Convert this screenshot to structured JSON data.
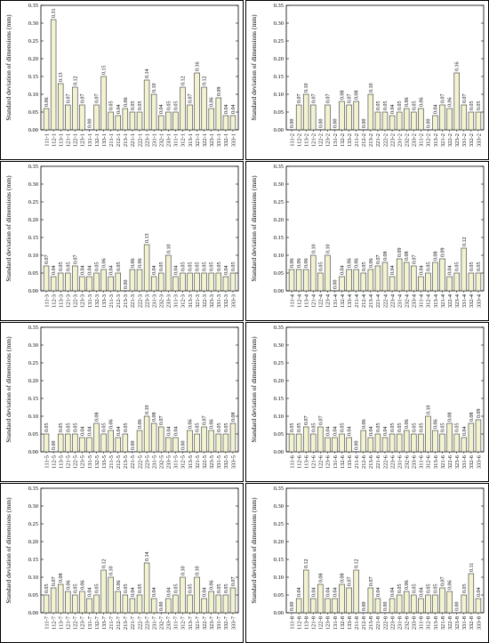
{
  "chart_data": [
    {
      "type": "bar",
      "panel": "a",
      "ylabel": "Standard deviation of dimensions (mm)",
      "ylim": [
        0,
        0.35
      ],
      "yticks": [
        "0.00",
        "0.05",
        "0.10",
        "0.15",
        "0.20",
        "0.25",
        "0.30",
        "0.35"
      ],
      "categories": [
        "111-1",
        "112-1",
        "113-1",
        "121-1",
        "122-1",
        "123-1",
        "131-1",
        "132-1",
        "133-1",
        "211-1",
        "212-1",
        "213-1",
        "221-1",
        "222-1",
        "223-1",
        "231-1",
        "232-1",
        "233-1",
        "311-1",
        "312-1",
        "313-1",
        "321-1",
        "322-1",
        "323-1",
        "331-1",
        "332-1",
        "333-1"
      ],
      "values": [
        0.06,
        0.31,
        0.13,
        0.07,
        0.12,
        0.07,
        0.0,
        0.07,
        0.15,
        0.05,
        0.04,
        0.06,
        0.05,
        0.05,
        0.14,
        0.1,
        0.04,
        0.05,
        0.05,
        0.12,
        0.07,
        0.16,
        0.12,
        0.06,
        0.09,
        0.04,
        0.04
      ],
      "labels": [
        "0.06",
        "0.31",
        "0.13",
        "0.07",
        "0.12",
        "0.07",
        "0.00",
        "0.07",
        "0.15",
        "0.05",
        "0.04",
        "0.06",
        "0.05",
        "0.05",
        "0.14",
        "0.10",
        "0.04",
        "0.05",
        "0.05",
        "0.12",
        "0.07",
        "0.16",
        "0.12",
        "0.06",
        "0.09",
        "0.04",
        "0.04"
      ]
    },
    {
      "type": "bar",
      "panel": "b",
      "ylabel": "Standard deviation of dimensions (mm)",
      "ylim": [
        0,
        0.35
      ],
      "yticks": [
        "0.00",
        "0.05",
        "0.10",
        "0.15",
        "0.20",
        "0.25",
        "0.30",
        "0.35"
      ],
      "categories": [
        "111-2",
        "112-2",
        "113-2",
        "121-2",
        "122-2",
        "123-2",
        "131-2",
        "132-2",
        "133-2",
        "211-2",
        "212-2",
        "213-2",
        "221-2",
        "222-2",
        "223-2",
        "231-2",
        "232-2",
        "233-2",
        "311-2",
        "312-2",
        "313-2",
        "321-2",
        "322-2",
        "323-2",
        "331-2",
        "332-2",
        "333-2"
      ],
      "values": [
        0.0,
        0.07,
        0.1,
        0.07,
        0.0,
        0.07,
        0.0,
        0.08,
        0.07,
        0.08,
        0.0,
        0.1,
        0.05,
        0.05,
        0.04,
        0.05,
        0.06,
        0.05,
        0.06,
        0.0,
        0.04,
        0.07,
        0.06,
        0.16,
        0.07,
        0.05,
        0.05
      ],
      "labels": [
        "0.00",
        "0.07",
        "0.10",
        "0.07",
        "0.00",
        "0.07",
        "0.00",
        "0.08",
        "0.07",
        "0.08",
        "0.00",
        "0.10",
        "0.05",
        "0.05",
        "0.04",
        "0.05",
        "0.06",
        "0.05",
        "0.06",
        "0.00",
        "0.04",
        "0.07",
        "0.06",
        "0.16",
        "0.07",
        "0.05",
        "0.05"
      ]
    },
    {
      "type": "bar",
      "panel": "c",
      "ylabel": "Standard deviation of dimensions (mm)",
      "ylim": [
        0,
        0.35
      ],
      "yticks": [
        "0.00",
        "0.05",
        "0.10",
        "0.15",
        "0.20",
        "0.25",
        "0.30",
        "0.35"
      ],
      "categories": [
        "111-3",
        "112-3",
        "113-3",
        "121-3",
        "122-3",
        "123-3",
        "131-3",
        "132-3",
        "133-3",
        "211-3",
        "212-3",
        "213-3",
        "221-3",
        "222-3",
        "223-3",
        "231-3",
        "232-3",
        "233-3",
        "311-3",
        "312-3",
        "313-3",
        "321-3",
        "322-3",
        "323-3",
        "331-3",
        "332-3",
        "333-3"
      ],
      "values": [
        0.07,
        0.04,
        0.05,
        0.05,
        0.07,
        0.04,
        0.04,
        0.05,
        0.06,
        0.04,
        0.05,
        0.0,
        0.06,
        0.06,
        0.13,
        0.04,
        0.05,
        0.1,
        0.04,
        0.05,
        0.05,
        0.05,
        0.05,
        0.05,
        0.05,
        0.04,
        0.05
      ],
      "labels": [
        "0.07",
        "0.04",
        "0.05",
        "0.05",
        "0.07",
        "0.04",
        "0.04",
        "0.05",
        "0.06",
        "0.04",
        "0.05",
        "0.00",
        "0.06",
        "0.06",
        "0.13",
        "0.04",
        "0.05",
        "0.10",
        "0.04",
        "0.05",
        "0.05",
        "0.05",
        "0.05",
        "0.05",
        "0.05",
        "0.04",
        "0.05"
      ]
    },
    {
      "type": "bar",
      "panel": "d",
      "ylabel": "Standard deviation of dimensions (mm)",
      "ylim": [
        0,
        0.35
      ],
      "yticks": [
        "0.00",
        "0.05",
        "0.10",
        "0.15",
        "0.20",
        "0.25",
        "0.30",
        "0.35"
      ],
      "categories": [
        "111-4",
        "112-4",
        "113-4",
        "121-4",
        "122-4",
        "123-4",
        "131-4",
        "132-4",
        "133-4",
        "211-4",
        "212-4",
        "213-4",
        "221-4",
        "222-4",
        "223-4",
        "231-4",
        "232-4",
        "233-4",
        "311-4",
        "312-4",
        "313-4",
        "321-4",
        "322-4",
        "323-4",
        "331-4",
        "332-4",
        "333-4"
      ],
      "values": [
        0.06,
        0.06,
        0.06,
        0.1,
        0.05,
        0.1,
        0.0,
        0.04,
        0.06,
        0.06,
        0.05,
        0.06,
        0.07,
        0.08,
        0.04,
        0.09,
        0.08,
        0.07,
        0.04,
        0.05,
        0.08,
        0.09,
        0.04,
        0.05,
        0.12,
        0.05,
        0.05
      ],
      "labels": [
        "0.06",
        "0.06",
        "0.06",
        "0.10",
        "0.05",
        "0.10",
        "0.00",
        "0.04",
        "0.06",
        "0.06",
        "0.05",
        "0.06",
        "0.07",
        "0.08",
        "0.04",
        "0.09",
        "0.08",
        "0.07",
        "0.04",
        "0.05",
        "0.08",
        "0.09",
        "0.04",
        "0.05",
        "0.12",
        "0.05",
        "0.05"
      ]
    },
    {
      "type": "bar",
      "panel": "e",
      "ylabel": "Standard deviation of dimensions (mm)",
      "ylim": [
        0,
        0.35
      ],
      "yticks": [
        "0.00",
        "0.05",
        "0.10",
        "0.15",
        "0.20",
        "0.25",
        "0.30",
        "0.35"
      ],
      "categories": [
        "111-5",
        "112-5",
        "113-5",
        "121-5",
        "122-5",
        "123-5",
        "131-5",
        "132-5",
        "133-5",
        "211-5",
        "212-5",
        "213-5",
        "221-5",
        "222-5",
        "223-5",
        "231-5",
        "232-5",
        "233-5",
        "311-5",
        "312-5",
        "313-5",
        "321-5",
        "322-5",
        "323-5",
        "331-5",
        "332-5",
        "333-5"
      ],
      "values": [
        0.05,
        0.0,
        0.05,
        0.05,
        0.05,
        0.04,
        0.04,
        0.08,
        0.05,
        0.06,
        0.04,
        0.05,
        0.0,
        0.06,
        0.1,
        0.08,
        0.07,
        0.04,
        0.04,
        0.0,
        0.06,
        0.05,
        0.07,
        0.06,
        0.05,
        0.05,
        0.08
      ],
      "labels": [
        "0.05",
        "0.00",
        "0.05",
        "0.05",
        "0.05",
        "0.04",
        "0.04",
        "0.08",
        "0.05",
        "0.06",
        "0.04",
        "0.05",
        "0.00",
        "0.06",
        "0.10",
        "0.08",
        "0.07",
        "0.04",
        "0.04",
        "0.00",
        "0.06",
        "0.05",
        "0.07",
        "0.06",
        "0.05",
        "0.05",
        "0.08"
      ]
    },
    {
      "type": "bar",
      "panel": "f",
      "ylabel": "Standard deviation of dimensions (mm)",
      "ylim": [
        0,
        0.35
      ],
      "yticks": [
        "0.00",
        "0.05",
        "0.10",
        "0.15",
        "0.20",
        "0.25",
        "0.30",
        "0.35"
      ],
      "categories": [
        "111-6",
        "112-6",
        "113-6",
        "121-6",
        "122-6",
        "123-6",
        "131-6",
        "132-6",
        "133-6",
        "211-6",
        "212-6",
        "213-6",
        "221-6",
        "222-6",
        "223-6",
        "231-6",
        "232-6",
        "233-6",
        "311-6",
        "312-6",
        "313-6",
        "321-6",
        "322-6",
        "323-6",
        "331-6",
        "332-6",
        "333-6"
      ],
      "values": [
        0.05,
        0.05,
        0.07,
        0.05,
        0.07,
        0.04,
        0.04,
        0.05,
        0.04,
        0.0,
        0.06,
        0.04,
        0.05,
        0.04,
        0.05,
        0.05,
        0.06,
        0.05,
        0.05,
        0.1,
        0.06,
        0.05,
        0.08,
        0.05,
        0.04,
        0.08,
        0.09
      ],
      "labels": [
        "0.05",
        "0.05",
        "0.07",
        "0.05",
        "0.07",
        "0.04",
        "0.04",
        "0.05",
        "0.04",
        "0.00",
        "0.06",
        "0.04",
        "0.05",
        "0.04",
        "0.05",
        "0.05",
        "0.06",
        "0.05",
        "0.05",
        "0.10",
        "0.06",
        "0.05",
        "0.08",
        "0.05",
        "0.04",
        "0.08",
        "0.09"
      ]
    },
    {
      "type": "bar",
      "panel": "g",
      "ylabel": "Standard deviation of dimensions (mm)",
      "ylim": [
        0,
        0.35
      ],
      "yticks": [
        "0.00",
        "0.05",
        "0.10",
        "0.15",
        "0.20",
        "0.25",
        "0.30",
        "0.35"
      ],
      "categories": [
        "111-7",
        "112-7",
        "113-7",
        "121-7",
        "122-7",
        "123-7",
        "131-7",
        "132-7",
        "133-7",
        "211-7",
        "212-7",
        "213-7",
        "221-7",
        "222-7",
        "223-7",
        "231-7",
        "232-7",
        "233-7",
        "311-7",
        "312-7",
        "313-7",
        "321-7",
        "322-7",
        "323-7",
        "331-7",
        "332-7",
        "333-7"
      ],
      "values": [
        0.05,
        0.07,
        0.08,
        0.06,
        0.05,
        0.06,
        0.04,
        0.05,
        0.12,
        0.1,
        0.06,
        0.05,
        0.04,
        0.05,
        0.14,
        0.04,
        0.0,
        0.04,
        0.05,
        0.1,
        0.05,
        0.1,
        0.04,
        0.06,
        0.05,
        0.05,
        0.07
      ],
      "labels": [
        "0.05",
        "0.07",
        "0.08",
        "0.06",
        "0.05",
        "0.06",
        "0.04",
        "0.05",
        "0.12",
        "0.10",
        "0.06",
        "0.05",
        "0.04",
        "0.05",
        "0.14",
        "0.04",
        "0.00",
        "0.04",
        "0.05",
        "0.10",
        "0.05",
        "0.10",
        "0.04",
        "0.06",
        "0.05",
        "0.05",
        "0.07"
      ]
    },
    {
      "type": "bar",
      "panel": "h",
      "ylabel": "Standard deviation of dimensions (mm)",
      "ylim": [
        0,
        0.35
      ],
      "yticks": [
        "0.00",
        "0.05",
        "0.10",
        "0.15",
        "0.20",
        "0.25",
        "0.30",
        "0.35"
      ],
      "categories": [
        "111-8",
        "112-8",
        "113-8",
        "121-8",
        "122-8",
        "123-8",
        "131-8",
        "132-8",
        "133-8",
        "211-8",
        "212-8",
        "213-8",
        "221-8",
        "222-8",
        "223-8",
        "231-8",
        "232-8",
        "233-8",
        "311-8",
        "312-8",
        "313-8",
        "321-8",
        "322-8",
        "323-8",
        "331-8",
        "332-8",
        "333-8"
      ],
      "values": [
        0.0,
        0.04,
        0.12,
        0.04,
        0.08,
        0.04,
        0.04,
        0.08,
        0.07,
        0.12,
        0.0,
        0.07,
        0.04,
        0.0,
        0.04,
        0.05,
        0.06,
        0.05,
        0.04,
        0.05,
        0.05,
        0.07,
        0.06,
        0.0,
        0.05,
        0.11,
        0.04
      ],
      "labels": [
        "0.00",
        "0.04",
        "0.12",
        "0.04",
        "0.08",
        "0.04",
        "0.04",
        "0.08",
        "0.07",
        "0.12",
        "0.00",
        "0.07",
        "0.04",
        "0.00",
        "0.04",
        "0.05",
        "0.06",
        "0.05",
        "0.04",
        "0.05",
        "0.05",
        "0.07",
        "0.06",
        "0.00",
        "0.05",
        "0.11",
        "0.04"
      ]
    }
  ],
  "colors": {
    "bar_fill": "#f3f3d2",
    "bar_stroke": "#333333",
    "axis": "#000000",
    "panel_border": "#000000",
    "background": "#ffffff"
  }
}
